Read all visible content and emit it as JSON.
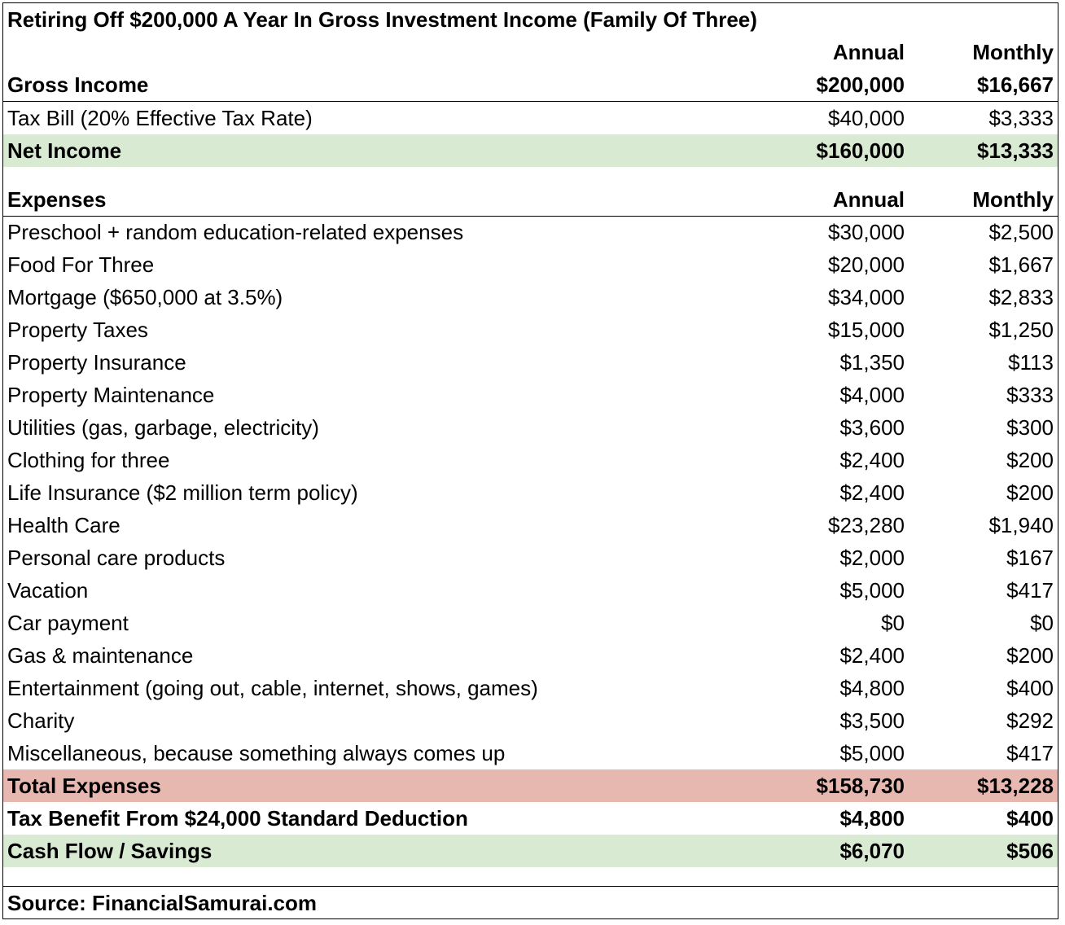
{
  "title": "Retiring Off $200,000 A Year In Gross Investment Income (Family Of Three)",
  "income_header": {
    "annual": "Annual",
    "monthly": "Monthly"
  },
  "gross_income": {
    "label": "Gross Income",
    "annual": "$200,000",
    "monthly": "$16,667"
  },
  "tax_bill": {
    "label": "Tax Bill (20% Effective Tax Rate)",
    "annual": "$40,000",
    "monthly": "$3,333"
  },
  "net_income": {
    "label": "Net Income",
    "annual": "$160,000",
    "monthly": "$13,333"
  },
  "expenses_header": {
    "label": "Expenses",
    "annual": "Annual",
    "monthly": "Monthly"
  },
  "expenses": [
    {
      "label": "Preschool + random education-related expenses",
      "annual": "$30,000",
      "monthly": "$2,500"
    },
    {
      "label": "Food For Three",
      "annual": "$20,000",
      "monthly": "$1,667"
    },
    {
      "label": "Mortgage ($650,000 at 3.5%)",
      "annual": "$34,000",
      "monthly": "$2,833"
    },
    {
      "label": "Property Taxes",
      "annual": "$15,000",
      "monthly": "$1,250"
    },
    {
      "label": "Property Insurance",
      "annual": "$1,350",
      "monthly": "$113"
    },
    {
      "label": "Property Maintenance",
      "annual": "$4,000",
      "monthly": "$333"
    },
    {
      "label": "Utilities (gas, garbage, electricity)",
      "annual": "$3,600",
      "monthly": "$300"
    },
    {
      "label": "Clothing for three",
      "annual": "$2,400",
      "monthly": "$200"
    },
    {
      "label": "Life Insurance ($2 million term policy)",
      "annual": "$2,400",
      "monthly": "$200"
    },
    {
      "label": "Health Care",
      "annual": "$23,280",
      "monthly": "$1,940"
    },
    {
      "label": "Personal care products",
      "annual": "$2,000",
      "monthly": "$167"
    },
    {
      "label": "Vacation",
      "annual": "$5,000",
      "monthly": "$417"
    },
    {
      "label": "Car payment",
      "annual": "$0",
      "monthly": "$0"
    },
    {
      "label": "Gas & maintenance",
      "annual": "$2,400",
      "monthly": "$200"
    },
    {
      "label": "Entertainment (going out, cable, internet, shows, games)",
      "annual": "$4,800",
      "monthly": "$400"
    },
    {
      "label": "Charity",
      "annual": "$3,500",
      "monthly": "$292"
    },
    {
      "label": "Miscellaneous, because something always comes up",
      "annual": "$5,000",
      "monthly": "$417"
    }
  ],
  "total_expenses": {
    "label": "Total Expenses",
    "annual": "$158,730",
    "monthly": "$13,228"
  },
  "tax_benefit": {
    "label": "Tax Benefit From $24,000 Standard Deduction",
    "annual": "$4,800",
    "monthly": "$400"
  },
  "cash_flow": {
    "label": "Cash Flow / Savings",
    "annual": "$6,070",
    "monthly": "$506"
  },
  "source": "Source: FinancialSamurai.com",
  "colors": {
    "highlight_green": "#d9ead3",
    "highlight_red": "#e6b8af"
  }
}
